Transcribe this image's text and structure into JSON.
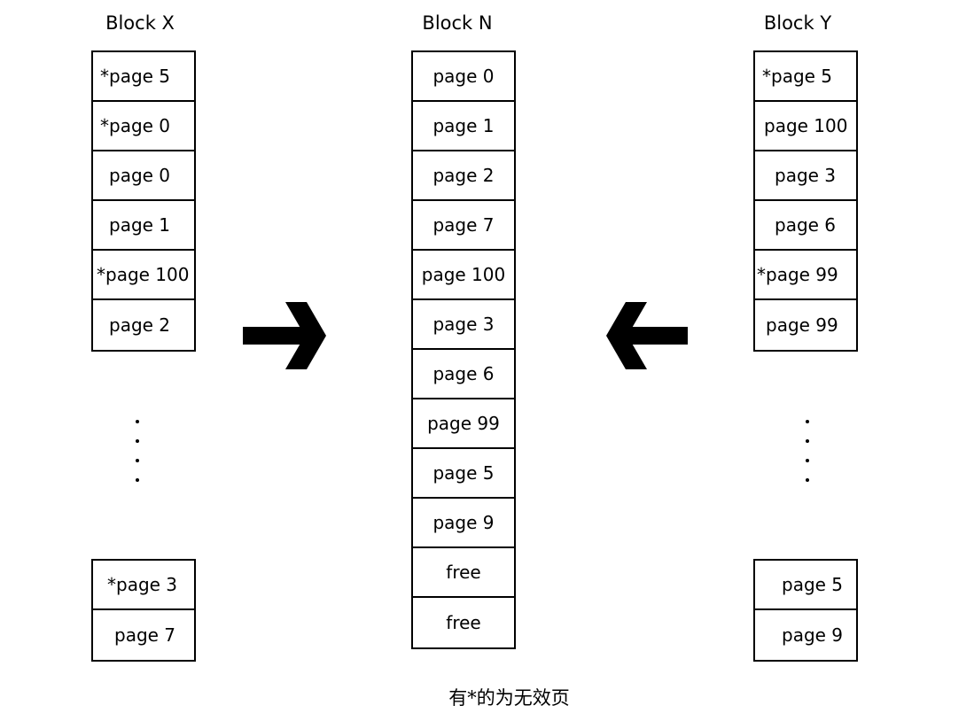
{
  "block_x": {
    "title": "Block X",
    "top_pages": [
      "*page 5",
      "*page 0",
      "page 0",
      "page 1",
      "*page 100",
      "page 2"
    ],
    "bottom_pages": [
      "*page 3",
      "page 7"
    ]
  },
  "block_n": {
    "title": "Block N",
    "pages": [
      "page 0",
      "page 1",
      "page 2",
      "page 7",
      "page 100",
      "page 3",
      "page 6",
      "page 99",
      "page 5",
      "page 9",
      "free",
      "free"
    ]
  },
  "block_y": {
    "title": "Block Y",
    "top_pages": [
      "*page 5",
      "page 100",
      "page 3",
      "page 6",
      "*page 99",
      "page 99"
    ],
    "bottom_pages": [
      "page 5",
      "page 9"
    ]
  },
  "caption": "有*的为无效页"
}
